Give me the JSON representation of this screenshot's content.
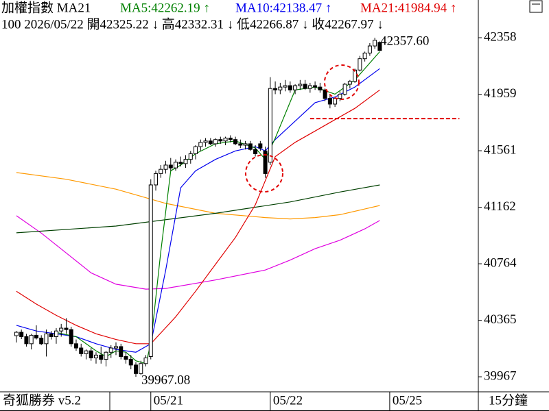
{
  "chart_data": {
    "type": "candlestick",
    "title": "加權指數 MA21",
    "readouts": [
      {
        "text": "MA5:42262.19 ↑",
        "color": "#008000"
      },
      {
        "text": "MA10:42138.47 ↑",
        "color": "#0000ee"
      },
      {
        "text": "MA21:41984.94 ↑",
        "color": "#e00000"
      }
    ],
    "info_line": "100 2026/05/22 開42325.22 ↓ 高42332.31 ↓ 低42266.87 ↓ 收42267.97 ↓",
    "footer_left": "奇狐勝券 v5.2",
    "footer_right": "15分鐘",
    "up_color": "#ffffff",
    "down_color": "#000000",
    "x": [
      0,
      1,
      2,
      3,
      4,
      5,
      6,
      7,
      8,
      9,
      10,
      11,
      12,
      13,
      14,
      15,
      16,
      17,
      18,
      19,
      20,
      21,
      22,
      23,
      24,
      25,
      26,
      27,
      28,
      29,
      30,
      31,
      32,
      33,
      34,
      35,
      36,
      37,
      38,
      39,
      40,
      41,
      42,
      43,
      44,
      45,
      46,
      47,
      48,
      49,
      50,
      51,
      52,
      53,
      54,
      55,
      56,
      57,
      58,
      59,
      60,
      61,
      62,
      63,
      64,
      65,
      66,
      67,
      68,
      69,
      70,
      71,
      72,
      73
    ],
    "open": [
      40257,
      40281,
      40250,
      40200,
      40260,
      40240,
      40200,
      40270,
      40250,
      40290,
      40310,
      40300,
      40200,
      40170,
      40130,
      40150,
      40100,
      40120,
      40090,
      40140,
      40170,
      40180,
      40110,
      40090,
      40050,
      39990,
      40060,
      40110,
      41320,
      41400,
      41430,
      41460,
      41440,
      41480,
      41470,
      41500,
      41540,
      41590,
      41620,
      41630,
      41610,
      41640,
      41630,
      41650,
      41640,
      41610,
      41600,
      41610,
      41570,
      41610,
      41560,
      41480,
      42000,
      41990,
      42010,
      42020,
      41990,
      42020,
      42030,
      42000,
      42020,
      42010,
      41990,
      41930,
      41890,
      41930,
      41960,
      42030,
      42050,
      42130,
      42210,
      42250,
      42300,
      42325.22
    ],
    "high": [
      40290,
      40300,
      40270,
      40270,
      40330,
      40260,
      40300,
      40290,
      40310,
      40340,
      40380,
      40320,
      40230,
      40200,
      40160,
      40170,
      40140,
      40180,
      40150,
      40190,
      40210,
      40200,
      40140,
      40120,
      40070,
      40080,
      40120,
      41360,
      41420,
      41460,
      41490,
      41510,
      41500,
      41520,
      41530,
      41560,
      41600,
      41640,
      41650,
      41650,
      41650,
      41660,
      41660,
      41670,
      41660,
      41640,
      41630,
      41630,
      41600,
      41630,
      41590,
      42080,
      42050,
      42040,
      42060,
      42050,
      42030,
      42060,
      42060,
      42040,
      42050,
      42040,
      42000,
      41960,
      41940,
      41980,
      42040,
      42060,
      42140,
      42230,
      42260,
      42320,
      42357.6,
      42332.31
    ],
    "low": [
      40209,
      40233,
      40180,
      40160,
      40230,
      40190,
      40110,
      40230,
      40200,
      40250,
      40270,
      40180,
      40150,
      40110,
      40090,
      40080,
      40060,
      40060,
      40040,
      40100,
      40120,
      40090,
      40060,
      40020,
      39967.08,
      39980,
      40040,
      40090,
      41280,
      41370,
      41400,
      41420,
      41420,
      41450,
      41440,
      41470,
      41500,
      41560,
      41590,
      41600,
      41590,
      41610,
      41600,
      41620,
      41600,
      41580,
      41570,
      41560,
      41520,
      41560,
      41370,
      41460,
      41960,
      41960,
      41980,
      41970,
      41960,
      41990,
      41990,
      41970,
      41990,
      41970,
      41910,
      41860,
      41870,
      41910,
      41950,
      42000,
      42040,
      42120,
      42190,
      42230,
      42280,
      42266.87
    ],
    "close": [
      40281,
      40250,
      40200,
      40260,
      40240,
      40200,
      40270,
      40250,
      40290,
      40310,
      40300,
      40200,
      40170,
      40130,
      40150,
      40100,
      40120,
      40090,
      40140,
      40170,
      40180,
      40110,
      40090,
      40050,
      39990,
      40060,
      40100,
      41320,
      41400,
      41430,
      41460,
      41440,
      41480,
      41470,
      41500,
      41540,
      41590,
      41620,
      41630,
      41610,
      41640,
      41630,
      41650,
      41640,
      41610,
      41600,
      41610,
      41570,
      41540,
      41580,
      41400,
      42000,
      41990,
      42010,
      42020,
      41990,
      42020,
      42030,
      42000,
      42020,
      42010,
      41990,
      41930,
      41890,
      41930,
      41960,
      42030,
      42050,
      42130,
      42210,
      42250,
      42300,
      42340,
      42267.97
    ],
    "series": [
      {
        "color": "#ff9900",
        "x": [
          0,
          10,
          20,
          30,
          40,
          50,
          55,
          60,
          65,
          70,
          73
        ],
        "values": [
          41407,
          41360,
          41290,
          41190,
          41120,
          41090,
          41080,
          41090,
          41110,
          41150,
          41175
        ]
      },
      {
        "color": "#e000e0",
        "x": [
          0,
          5,
          10,
          15,
          20,
          26,
          30,
          40,
          50,
          55,
          60,
          65,
          70,
          73
        ],
        "values": [
          41103,
          40980,
          40840,
          40700,
          40620,
          40585,
          40590,
          40650,
          40720,
          40790,
          40870,
          40930,
          41010,
          41069
        ]
      },
      {
        "color": "#004000",
        "x": [
          0,
          20,
          40,
          55,
          65,
          73
        ],
        "values": [
          40982,
          41030,
          41120,
          41200,
          41270,
          41320
        ]
      },
      {
        "color": "#e00000",
        "x": [
          0,
          4,
          8,
          12,
          16,
          20,
          24,
          27,
          32,
          36,
          40,
          44,
          48,
          50,
          52,
          56,
          60,
          64,
          68,
          73
        ],
        "values": [
          40570,
          40480,
          40400,
          40330,
          40270,
          40230,
          40200,
          40200,
          40390,
          40570,
          40760,
          40950,
          41180,
          41350,
          41520,
          41620,
          41700,
          41780,
          41860,
          41990
        ]
      },
      {
        "color": "#0000ee",
        "x": [
          0,
          4,
          8,
          12,
          16,
          20,
          24,
          27,
          30,
          33,
          36,
          40,
          44,
          48,
          50,
          52,
          56,
          60,
          64,
          68,
          73
        ],
        "values": [
          40330,
          40290,
          40270,
          40250,
          40200,
          40160,
          40140,
          40200,
          40720,
          41300,
          41420,
          41500,
          41560,
          41590,
          41560,
          41640,
          41770,
          41900,
          41940,
          42010,
          42140
        ]
      },
      {
        "color": "#008000",
        "x": [
          8,
          12,
          16,
          18,
          20,
          22,
          24,
          26,
          27,
          29,
          31,
          33,
          36,
          40,
          44,
          48,
          50,
          52,
          54,
          56,
          60,
          64,
          68,
          73
        ],
        "values": [
          40280,
          40250,
          40150,
          40110,
          40150,
          40140,
          40080,
          40060,
          40200,
          40850,
          41420,
          41460,
          41540,
          41610,
          41630,
          41580,
          41500,
          41650,
          41820,
          41990,
          42010,
          41960,
          42060,
          42260
        ]
      }
    ],
    "annotations": [
      {
        "x": 72,
        "label": "42357.60",
        "field": "high"
      },
      {
        "x": 24,
        "label": "39967.08",
        "field": "low"
      }
    ],
    "reference_line": {
      "value": 41788,
      "x": [
        59,
        89
      ],
      "color": "#e00000"
    },
    "xlim": [
      -3.3,
      92.8
    ],
    "xticks": [
      {
        "value": 27,
        "label": "05/21"
      },
      {
        "value": 51,
        "label": "05/22"
      },
      {
        "value": 75,
        "label": "05/25"
      }
    ],
    "ylim": [
      39861,
      42624
    ],
    "yticks": [
      39967,
      40365,
      40764,
      41162,
      41561,
      41959,
      42358
    ]
  }
}
